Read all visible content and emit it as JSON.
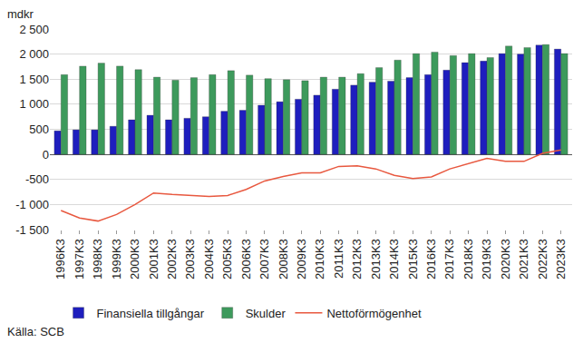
{
  "chart_data": {
    "type": "bar",
    "ylabel": "mdkr",
    "source": "Källa: SCB",
    "categories": [
      "1996K3",
      "1997K3",
      "1998K3",
      "1999K3",
      "2000K3",
      "2001K3",
      "2002K3",
      "2003K3",
      "2004K3",
      "2005K3",
      "2006K3",
      "2007K3",
      "2008K3",
      "2009K3",
      "2010K3",
      "2011K3",
      "2012K3",
      "2013K3",
      "2014K3",
      "2015K3",
      "2016K3",
      "2017K3",
      "2018K3",
      "2019K3",
      "2020K3",
      "2021K3",
      "2022K3",
      "2023K3"
    ],
    "series": [
      {
        "name": "Finansiella tillgångar",
        "type": "bar",
        "color": "#1e1ebe",
        "values": [
          470,
          490,
          490,
          560,
          690,
          780,
          690,
          720,
          750,
          860,
          880,
          980,
          1050,
          1100,
          1180,
          1300,
          1380,
          1440,
          1460,
          1530,
          1590,
          1680,
          1830,
          1860,
          2010,
          2000,
          2180,
          2100
        ]
      },
      {
        "name": "Skulder",
        "type": "bar",
        "color": "#3d9a5c",
        "values": [
          1590,
          1760,
          1820,
          1760,
          1690,
          1540,
          1480,
          1530,
          1590,
          1670,
          1580,
          1510,
          1490,
          1470,
          1540,
          1540,
          1610,
          1730,
          1880,
          2010,
          2040,
          1970,
          2010,
          1930,
          2160,
          2130,
          2190,
          2010
        ]
      },
      {
        "name": "Nettoförmögenhet",
        "type": "line",
        "color": "#e8583f",
        "values": [
          -1120,
          -1270,
          -1330,
          -1200,
          -1000,
          -770,
          -800,
          -820,
          -840,
          -820,
          -700,
          -530,
          -440,
          -370,
          -370,
          -240,
          -230,
          -290,
          -420,
          -480,
          -450,
          -290,
          -190,
          -80,
          -140,
          -140,
          20,
          90
        ]
      }
    ],
    "ylim": [
      -1500,
      2500
    ],
    "yticks": [
      {
        "value": -1500,
        "label": "-1 500"
      },
      {
        "value": -1000,
        "label": "-1 000"
      },
      -500,
      0,
      500,
      {
        "value": 1000,
        "label": "1 000"
      },
      {
        "value": 1500,
        "label": "1 500"
      },
      {
        "value": 2000,
        "label": "2 000"
      },
      {
        "value": 2500,
        "label": "2 500"
      }
    ],
    "grid": true,
    "legend": "bottom"
  }
}
